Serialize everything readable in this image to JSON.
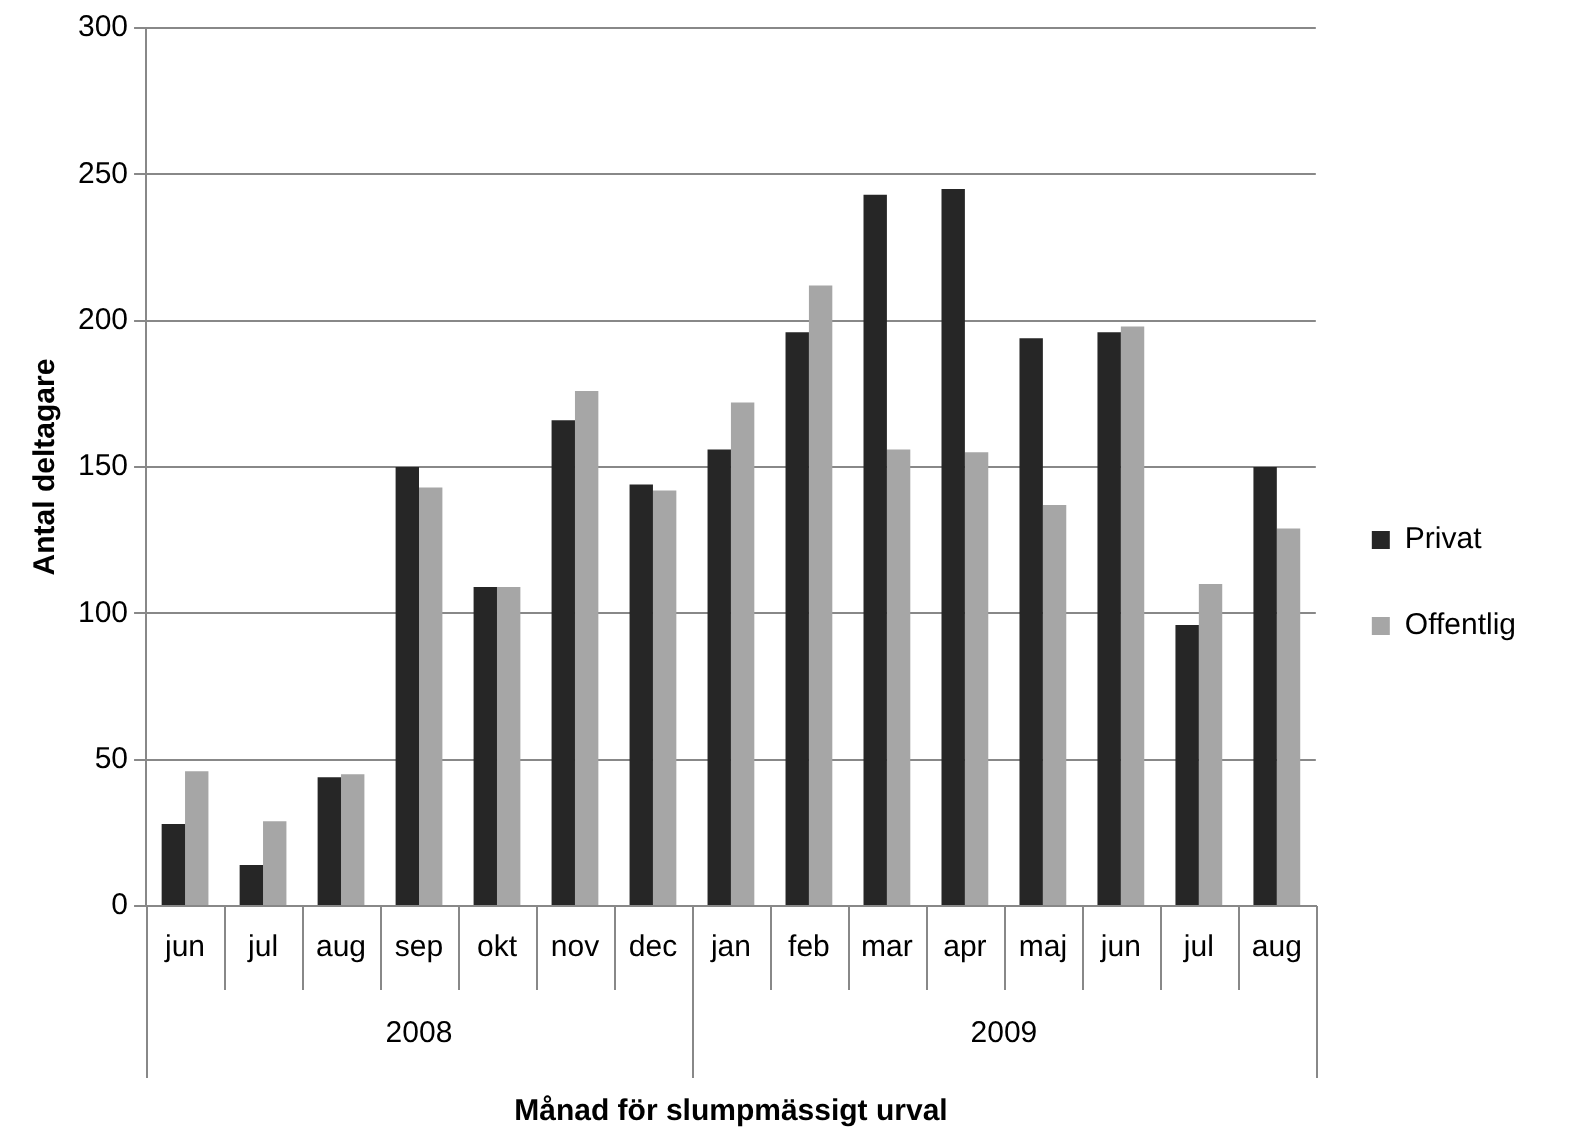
{
  "chart_data": {
    "type": "bar",
    "xlabel": "Månad för slumpmässigt urval",
    "ylabel": "Antal deltagare",
    "categories": [
      "jun",
      "jul",
      "aug",
      "sep",
      "okt",
      "nov",
      "dec",
      "jan",
      "feb",
      "mar",
      "apr",
      "maj",
      "jun",
      "jul",
      "aug"
    ],
    "series": [
      {
        "name": "Privat",
        "color": "#262626",
        "values": [
          28,
          14,
          44,
          150,
          109,
          166,
          144,
          156,
          196,
          243,
          245,
          194,
          196,
          96,
          150
        ]
      },
      {
        "name": "Offentlig",
        "color": "#a6a6a6",
        "values": [
          46,
          29,
          45,
          143,
          109,
          176,
          142,
          172,
          212,
          156,
          155,
          137,
          198,
          110,
          129
        ]
      }
    ],
    "annotations": [
      "2008",
      "2009"
    ],
    "ylim": [
      0,
      300
    ],
    "yticks": [
      0,
      50,
      100,
      150,
      200,
      250,
      300
    ],
    "grid": "y",
    "legend": "right"
  }
}
